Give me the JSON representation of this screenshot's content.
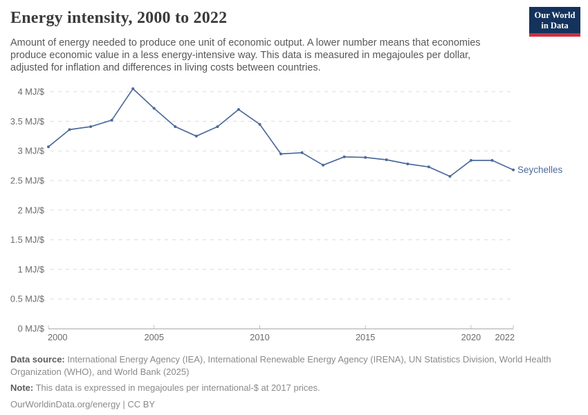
{
  "header": {
    "title": "Energy intensity, 2000 to 2022",
    "subtitle_lines": [
      "Amount of energy needed to produce one unit of economic output. A lower number means that economies",
      "produce economic value in a less energy-intensive way. This data is measured in megajoules per dollar,",
      "adjusted for inflation and differences in living costs between countries."
    ]
  },
  "logo": {
    "line1": "Our World",
    "line2": "in Data"
  },
  "colors": {
    "line": "#4C6A9C",
    "logo_bg": "#14335C",
    "logo_bar": "#CE2E43",
    "grid": "#DBDBDB",
    "axis": "#A8A8A8",
    "tick": "#C2C2C2",
    "tick_text": "#6B6B6B"
  },
  "chart_data": {
    "type": "line",
    "title": "Energy intensity, 2000 to 2022",
    "xlabel": "",
    "ylabel": "MJ/$",
    "x": [
      2000,
      2001,
      2002,
      2003,
      2004,
      2005,
      2006,
      2007,
      2008,
      2009,
      2010,
      2011,
      2012,
      2013,
      2014,
      2015,
      2016,
      2017,
      2018,
      2019,
      2020,
      2021,
      2022
    ],
    "series": [
      {
        "name": "Seychelles",
        "values": [
          3.07,
          3.36,
          3.41,
          3.52,
          4.05,
          3.72,
          3.41,
          3.25,
          3.41,
          3.7,
          3.45,
          2.95,
          2.97,
          2.76,
          2.9,
          2.89,
          2.85,
          2.78,
          2.73,
          2.57,
          2.84,
          2.84,
          2.68
        ]
      }
    ],
    "ylim": [
      0,
      4.3
    ],
    "yticks": [
      {
        "value": 0,
        "label": "0 MJ/$"
      },
      {
        "value": 0.5,
        "label": "0.5 MJ/$"
      },
      {
        "value": 1,
        "label": "1 MJ/$"
      },
      {
        "value": 1.5,
        "label": "1.5 MJ/$"
      },
      {
        "value": 2,
        "label": "2 MJ/$"
      },
      {
        "value": 2.5,
        "label": "2.5 MJ/$"
      },
      {
        "value": 3,
        "label": "3 MJ/$"
      },
      {
        "value": 3.5,
        "label": "3.5 MJ/$"
      },
      {
        "value": 4,
        "label": "4 MJ/$"
      }
    ],
    "xticks": [
      2000,
      2005,
      2010,
      2015,
      2020,
      2022
    ],
    "grid": "horizontal-dashed",
    "legend_position": "end-of-line"
  },
  "footer": {
    "source_label": "Data source:",
    "source_line1": " International Energy Agency (IEA), International Renewable Energy Agency (IRENA), UN Statistics Division, World Health",
    "source_line2": "Organization (WHO), and World Bank (2025)",
    "note_label": "Note:",
    "note_text": " This data is expressed in megajoules per international-$ at 2017 prices.",
    "link": "OurWorldinData.org/energy | CC BY"
  }
}
